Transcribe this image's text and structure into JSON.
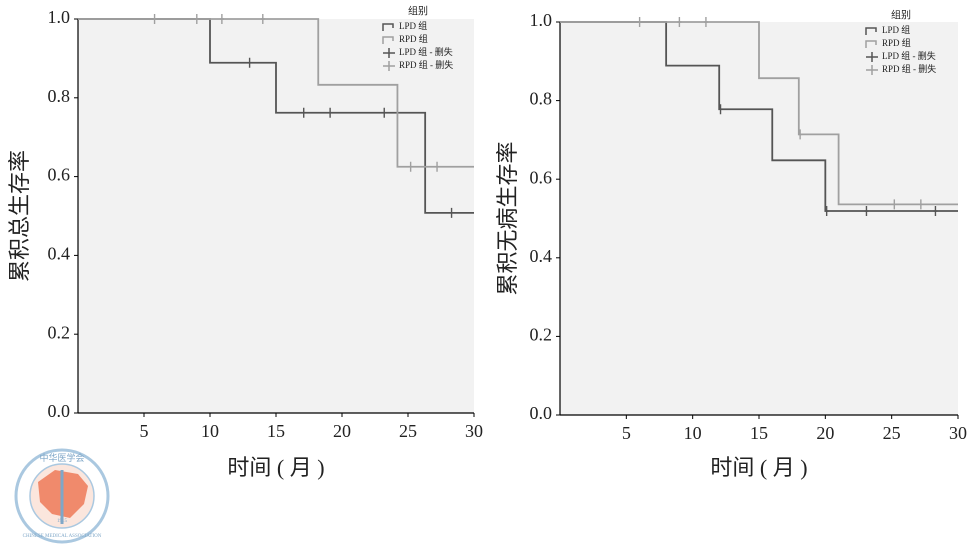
{
  "chart_data": [
    {
      "type": "step",
      "xlabel": "时间 ( 月 )",
      "ylabel": "累积总生存率",
      "xlim": [
        0,
        30
      ],
      "ylim": [
        0,
        1
      ],
      "xticks": [
        5,
        10,
        15,
        20,
        25,
        30
      ],
      "yticks": [
        {
          "value": 0,
          "label": "0.0"
        },
        {
          "value": 0.2,
          "label": "0.2"
        },
        {
          "value": 0.4,
          "label": "0.4"
        },
        {
          "value": 0.6,
          "label": "0.6"
        },
        {
          "value": 0.8,
          "label": "0.8"
        },
        {
          "value": 1,
          "label": "1.0"
        }
      ],
      "legend_title": "组别",
      "series": [
        {
          "name": "LPD 组",
          "color": "#555555",
          "marker": "step",
          "x": [
            0,
            10,
            15,
            26.3,
            30
          ],
          "values": [
            1,
            0.889,
            0.762,
            0.508,
            0.508
          ]
        },
        {
          "name": "RPD 组",
          "color": "#a0a0a0",
          "marker": "step",
          "x": [
            0,
            18.2,
            24.2,
            30
          ],
          "values": [
            1,
            0.833,
            0.625,
            0.625
          ]
        },
        {
          "name": "LPD 组 - 删失",
          "color": "#555555",
          "marker": "+",
          "x": [
            13.0,
            17.1,
            19.1,
            23.2,
            28.3
          ],
          "values": [
            0.889,
            0.762,
            0.762,
            0.762,
            0.508
          ]
        },
        {
          "name": "RPD 组 - 删失",
          "color": "#a0a0a0",
          "marker": "+",
          "x": [
            5.8,
            9.0,
            10.9,
            14.0,
            25.2,
            27.2
          ],
          "values": [
            1,
            1,
            1,
            1,
            0.625,
            0.625
          ]
        }
      ]
    },
    {
      "type": "step",
      "xlabel": "时间 ( 月 )",
      "ylabel": "累积无病生存率",
      "xlim": [
        0,
        30
      ],
      "ylim": [
        0,
        1
      ],
      "xticks": [
        5,
        10,
        15,
        20,
        25,
        30
      ],
      "yticks": [
        {
          "value": 0,
          "label": "0.0"
        },
        {
          "value": 0.2,
          "label": "0.2"
        },
        {
          "value": 0.4,
          "label": "0.4"
        },
        {
          "value": 0.6,
          "label": "0.6"
        },
        {
          "value": 0.8,
          "label": "0.8"
        },
        {
          "value": 1,
          "label": "1.0"
        }
      ],
      "legend_title": "组别",
      "series": [
        {
          "name": "LPD 组",
          "color": "#555555",
          "marker": "step",
          "x": [
            0,
            8,
            12,
            16,
            20,
            30
          ],
          "values": [
            1,
            0.889,
            0.778,
            0.648,
            0.519,
            0.519
          ]
        },
        {
          "name": "RPD 组",
          "color": "#a0a0a0",
          "marker": "step",
          "x": [
            0,
            15,
            18,
            21,
            30
          ],
          "values": [
            1,
            0.857,
            0.714,
            0.536,
            0.536
          ]
        },
        {
          "name": "LPD 组 - 删失",
          "color": "#555555",
          "marker": "+",
          "x": [
            12.1,
            20.1,
            23.1,
            28.3
          ],
          "values": [
            0.778,
            0.519,
            0.519,
            0.519
          ]
        },
        {
          "name": "RPD 组 - 删失",
          "color": "#a0a0a0",
          "marker": "+",
          "x": [
            6.0,
            9.0,
            11.0,
            18.1,
            25.2,
            27.2
          ],
          "values": [
            1,
            1,
            1,
            0.714,
            0.536,
            0.536
          ]
        }
      ]
    }
  ],
  "logo": {
    "name": "中华医学会",
    "english": "CHINESE MEDICAL ASSOCIATION",
    "year": "1915"
  }
}
